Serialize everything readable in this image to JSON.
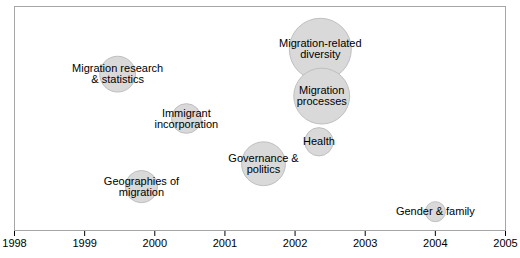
{
  "chart_data": {
    "type": "bubble",
    "labels": [
      "Migration research\n& statistics",
      "Immigrant\nincorporation",
      "Geographies of\nmigration",
      "Governance &\npolitics",
      "Migration-related\ndiversity",
      "Migration\nprocesses",
      "Health",
      "Gender & family"
    ],
    "x": [
      1999.47,
      2000.45,
      1999.81,
      2001.55,
      2002.36,
      2002.38,
      2002.34,
      2004.0
    ],
    "y": [
      69.8,
      50,
      19.6,
      29.8,
      80.9,
      60,
      39.6,
      8.4
    ],
    "size": [
      32,
      22,
      26,
      48,
      96,
      78,
      20,
      10
    ],
    "xlim": [
      1998,
      2005
    ],
    "xticks": [
      1998,
      1999,
      2000,
      2001,
      2002,
      2003,
      2004,
      2005
    ],
    "ylim": [
      0,
      100
    ],
    "yticks": [],
    "tick_labels": "x",
    "color": "#d9d9d9"
  }
}
